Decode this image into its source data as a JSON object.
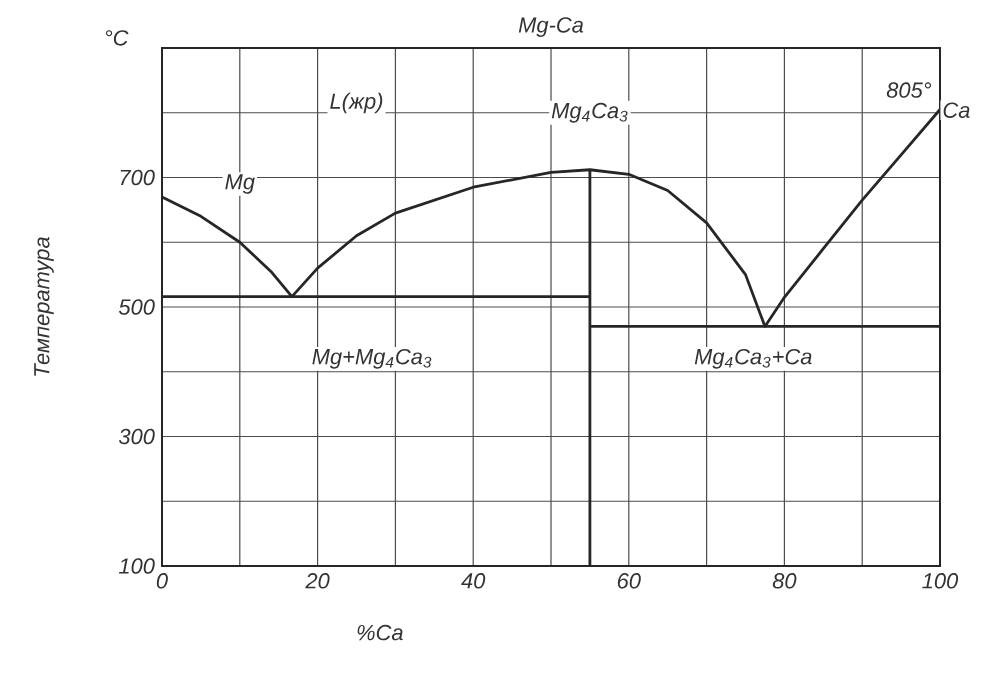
{
  "chart_data": {
    "type": "line",
    "title": "Mg-Ca",
    "xlabel": "%Ca",
    "ylabel": "Температура",
    "xlim": [
      0,
      100
    ],
    "ylim": [
      100,
      900
    ],
    "xticks": [
      0,
      {
        "value": 10,
        "label": null
      },
      20,
      {
        "value": 30,
        "label": null
      },
      40,
      {
        "value": 50,
        "label": null
      },
      60,
      {
        "value": 70,
        "label": null
      },
      80,
      {
        "value": 90,
        "label": null
      },
      100
    ],
    "yticks": [
      100,
      {
        "value": 200,
        "label": null
      },
      300,
      {
        "value": 400,
        "label": null
      },
      500,
      {
        "value": 600,
        "label": null
      },
      700,
      {
        "value": 800,
        "label": null
      },
      {
        "value": 900,
        "label": null
      }
    ],
    "grid": true,
    "marker": "none",
    "line_style": "solid",
    "series": [
      {
        "color": "#262626",
        "x": [
          0,
          5,
          10,
          14,
          16.7,
          20,
          25,
          30,
          40,
          50,
          55,
          60,
          65,
          70,
          75,
          77.5,
          80,
          85,
          90,
          95,
          100
        ],
        "values": [
          670,
          640,
          600,
          555,
          516,
          560,
          610,
          645,
          685,
          708,
          712,
          705,
          680,
          630,
          550,
          470,
          515,
          590,
          665,
          735,
          805
        ]
      },
      {
        "color": "#262626",
        "x": [
          0,
          55
        ],
        "values": [
          516,
          516
        ]
      },
      {
        "color": "#262626",
        "x": [
          55,
          100
        ],
        "values": [
          470,
          470
        ]
      },
      {
        "color": "#262626",
        "x": [
          55,
          55
        ],
        "values": [
          100,
          712
        ]
      }
    ],
    "annotations": [
      "°C",
      {
        "text": "L(жр)",
        "x": 25,
        "y": 815
      },
      {
        "text": "Mg",
        "x": 10,
        "y": 690
      },
      "Mg$_{4}$Ca$_{3}$",
      {
        "text": "805°",
        "x": 96,
        "y": 835
      },
      "Ca",
      "Mg+Mg$_{4}$Ca$_{3}$",
      "Mg$_{4}$Ca$_{3}$+Ca"
    ]
  }
}
